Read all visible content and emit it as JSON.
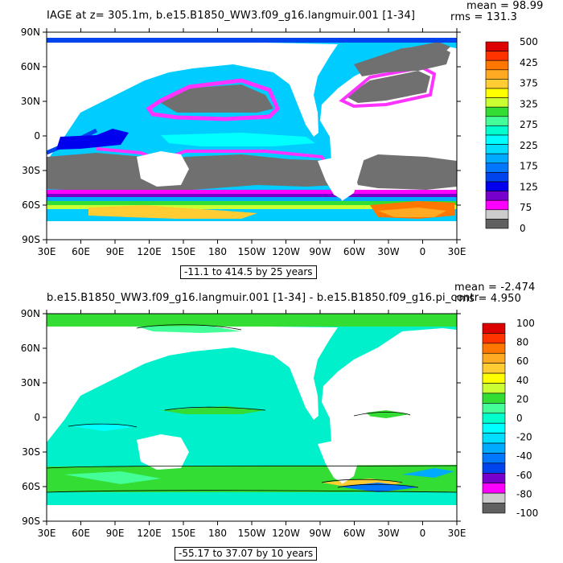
{
  "colors": {
    "ocean_bg": "#00e5cc",
    "land": "#ffffff",
    "frame": "#000000"
  },
  "top": {
    "title": "IAGE at z=  305.1m, b.e15.B1850_WW3.f09_g16.langmuir.001  [1-34]",
    "mean": "mean = 98.99",
    "rms": "rms = 131.3",
    "range": "-11.1 to 414.5 by 25 years",
    "lat_labels": [
      "90N",
      "60N",
      "30N",
      "0",
      "30S",
      "60S",
      "90S"
    ],
    "lon_labels": [
      "30E",
      "60E",
      "90E",
      "120E",
      "150E",
      "180",
      "150W",
      "120W",
      "90W",
      "60W",
      "30W",
      "0",
      "30E"
    ],
    "colorbar": {
      "labels": [
        "500",
        "425",
        "375",
        "325",
        "275",
        "225",
        "175",
        "125",
        "75",
        "0"
      ],
      "colors": [
        "#dd0000",
        "#ff3300",
        "#ff7700",
        "#ffaa22",
        "#ffcc33",
        "#ffff00",
        "#ccff33",
        "#33dd33",
        "#44ff99",
        "#00ffcc",
        "#00ffff",
        "#00ddff",
        "#00aaff",
        "#0077ff",
        "#0044ee",
        "#0000ee",
        "#7700cc",
        "#ff00ff",
        "#cccccc",
        "#606060"
      ]
    }
  },
  "bottom": {
    "title": "b.e15.B1850_WW3.f09_g16.langmuir.001  [1-34]  -  b.e15.B1850.f09_g16.pi_contr",
    "mean": "mean = -2.474",
    "rms": "rms = 4.950",
    "range": "-55.17 to 37.07 by 10 years",
    "lat_labels": [
      "90N",
      "60N",
      "30N",
      "0",
      "30S",
      "60S",
      "90S"
    ],
    "lon_labels": [
      "30E",
      "60E",
      "90E",
      "120E",
      "150E",
      "180",
      "150W",
      "120W",
      "90W",
      "60W",
      "30W",
      "0",
      "30E"
    ],
    "colorbar": {
      "labels": [
        "100",
        "80",
        "60",
        "40",
        "20",
        "0",
        "-20",
        "-40",
        "-60",
        "-80",
        "-100"
      ],
      "colors": [
        "#dd0000",
        "#ff3300",
        "#ff7700",
        "#ffaa22",
        "#ffcc33",
        "#ffff00",
        "#ccff33",
        "#33dd33",
        "#44ff99",
        "#00ffcc",
        "#00ffff",
        "#00ddff",
        "#00aaff",
        "#0077ff",
        "#0044ee",
        "#7700cc",
        "#ff00ff",
        "#cccccc",
        "#606060"
      ]
    }
  }
}
